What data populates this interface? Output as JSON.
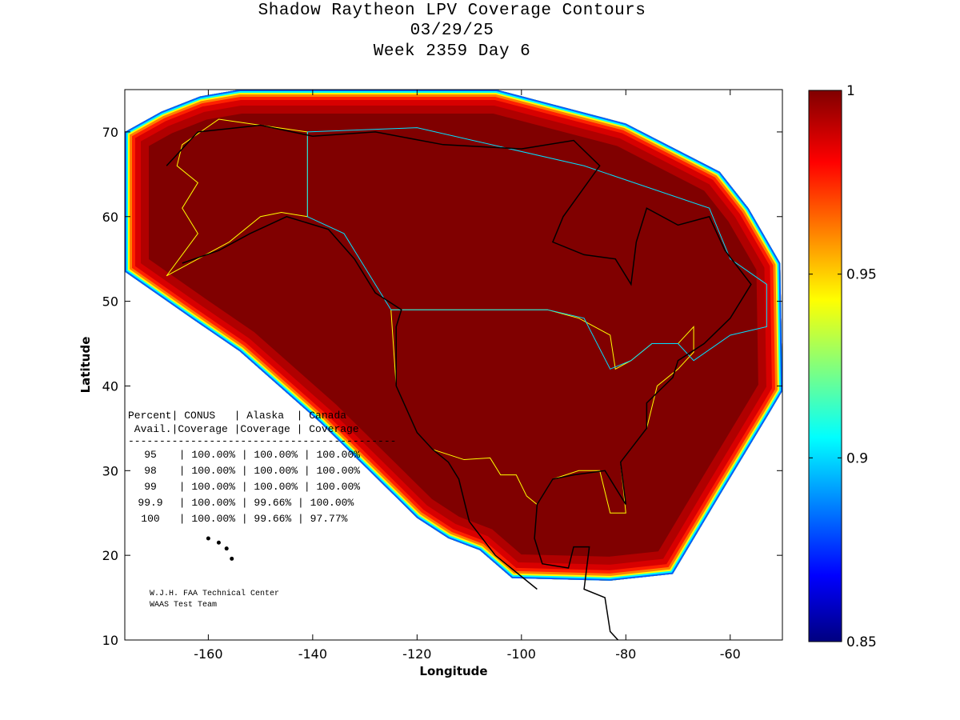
{
  "chart_data": {
    "type": "heatmap",
    "title": [
      "Shadow Raytheon LPV Coverage Contours",
      "03/29/25",
      "Week 2359 Day 6"
    ],
    "xlabel": "Longitude",
    "ylabel": "Latitude",
    "xlim": [
      -176,
      -50
    ],
    "ylim": [
      10,
      75
    ],
    "xticks": [
      -160,
      -140,
      -120,
      -100,
      -80,
      -60
    ],
    "yticks": [
      10,
      20,
      30,
      40,
      50,
      60,
      70
    ],
    "colorbar": {
      "range": [
        0.85,
        1
      ],
      "ticks": [
        "0.85",
        "0.9",
        "0.95",
        "1"
      ],
      "colormap": "jet"
    },
    "coverage_contour_lonlat": [
      [
        -176,
        70
      ],
      [
        -169,
        72.4
      ],
      [
        -161.6,
        74.2
      ],
      [
        -154,
        75
      ],
      [
        -104.8,
        75
      ],
      [
        -80,
        71
      ],
      [
        -62,
        65.3
      ],
      [
        -56.5,
        61
      ],
      [
        -50.4,
        54.5
      ],
      [
        -50,
        39.4
      ],
      [
        -52.7,
        36.6
      ],
      [
        -61.9,
        27.2
      ],
      [
        -71,
        17.8
      ],
      [
        -83,
        17
      ],
      [
        -101.8,
        17.3
      ],
      [
        -108,
        20.6
      ],
      [
        -114,
        22
      ],
      [
        -120,
        24.4
      ],
      [
        -138.6,
        35.7
      ],
      [
        -154,
        44.1
      ],
      [
        -163,
        47.9
      ],
      [
        -176,
        53.5
      ]
    ],
    "table": {
      "header1": "Percent| CONUS   | Alaska  | Canada",
      "header2": " Avail.|Coverage |Coverage | Coverage",
      "rule": "-------------------------------------------",
      "rows": [
        {
          "avail": "95",
          "conus": "100.00%",
          "alaska": "100.00%",
          "canada": "100.00%"
        },
        {
          "avail": "98",
          "conus": "100.00%",
          "alaska": "100.00%",
          "canada": "100.00%"
        },
        {
          "avail": "99",
          "conus": "100.00%",
          "alaska": "100.00%",
          "canada": "100.00%"
        },
        {
          "avail": "99.9",
          "conus": "100.00%",
          "alaska": "99.66%",
          "canada": "100.00%"
        },
        {
          "avail": "100",
          "conus": "100.00%",
          "alaska": "99.66%",
          "canada": "97.77%"
        }
      ]
    },
    "credits": [
      "W.J.H. FAA Technical Center",
      "WAAS Test Team"
    ]
  }
}
